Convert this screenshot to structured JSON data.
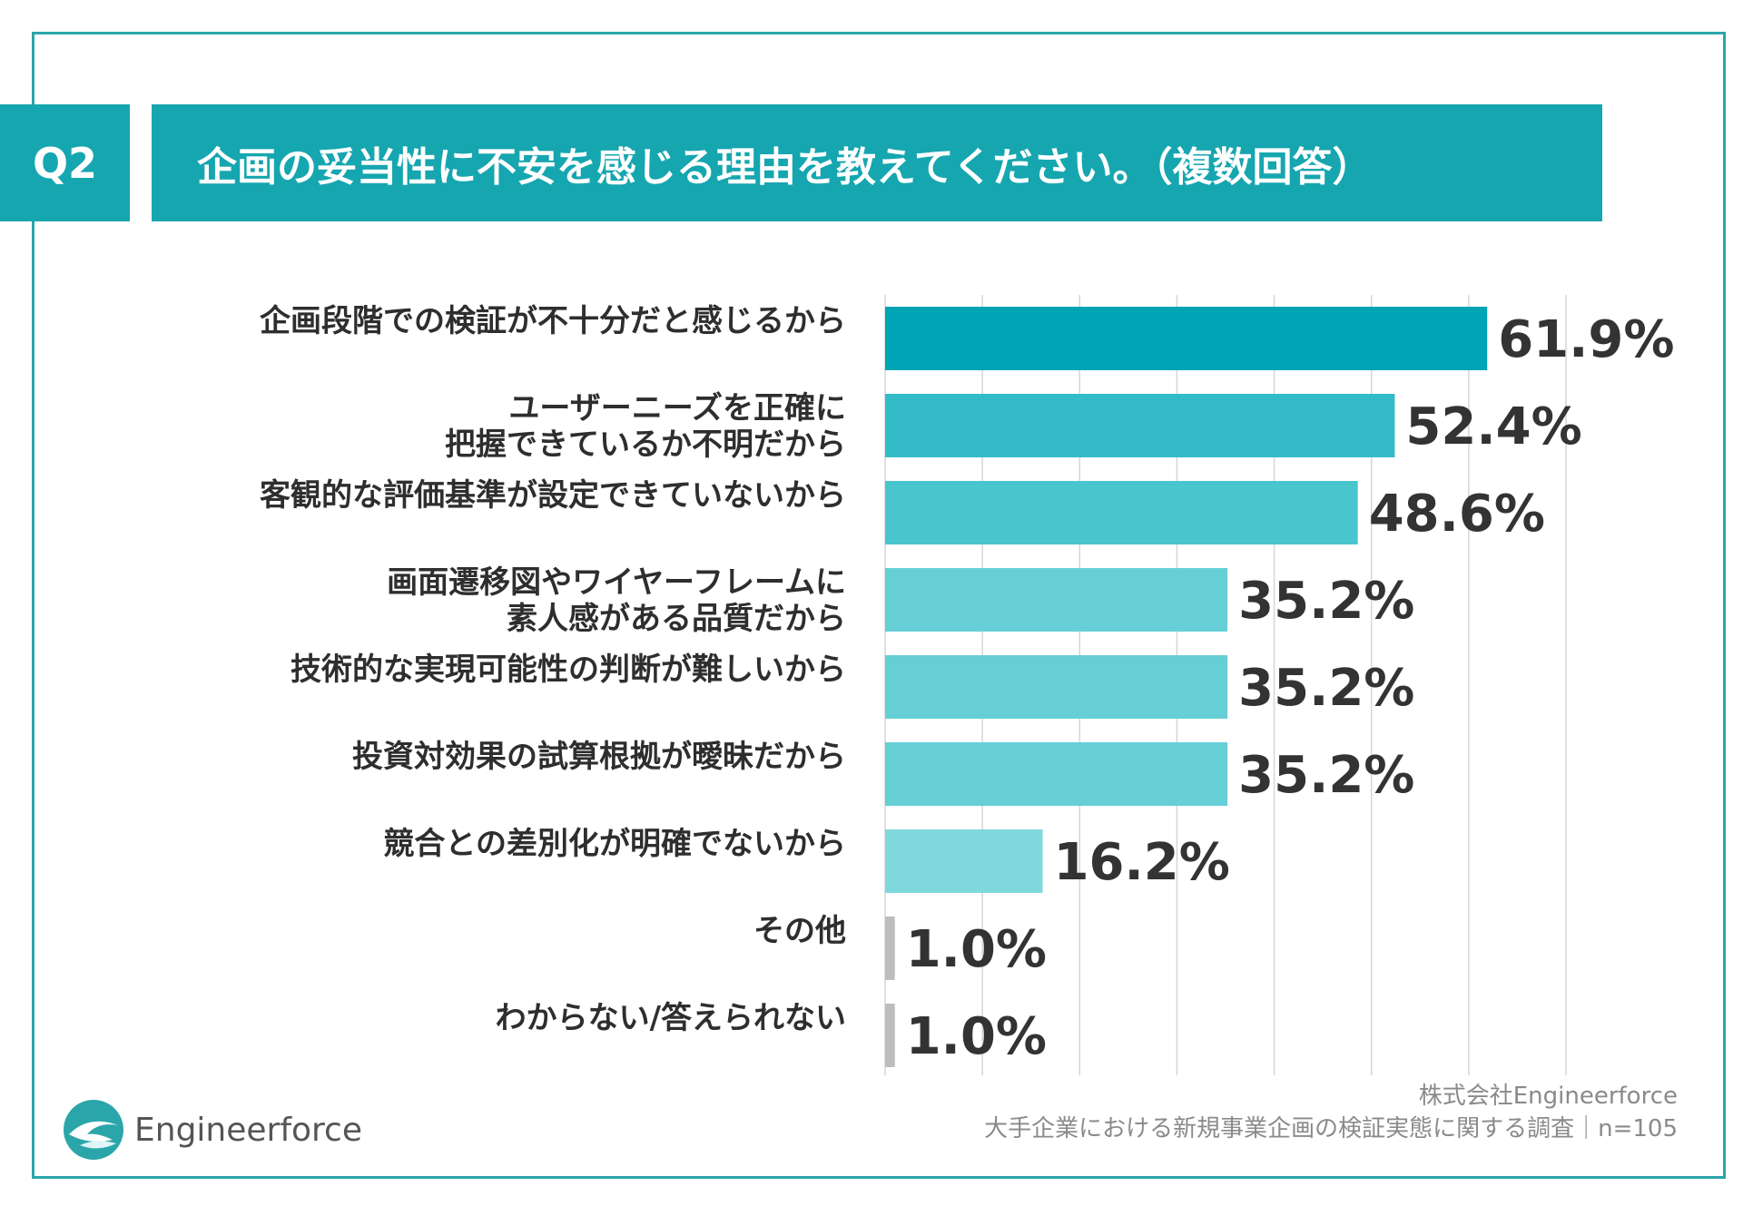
{
  "header": {
    "q_label": "Q2",
    "title": "企画の妥当性に不安を感じる理由を教えてください。（複数回答）"
  },
  "chart_data": {
    "type": "bar",
    "orientation": "horizontal",
    "categories": [
      [
        "企画段階での検証が不十分だと感じるから"
      ],
      [
        "ユーザーニーズを正確に",
        "把握できているか不明だから"
      ],
      [
        "客観的な評価基準が設定できていないから"
      ],
      [
        "画面遷移図やワイヤーフレームに",
        "素人感がある品質だから"
      ],
      [
        "技術的な実現可能性の判断が難しいから"
      ],
      [
        "投資対効果の試算根拠が曖昧だから"
      ],
      [
        "競合との差別化が明確でないから"
      ],
      [
        "その他"
      ],
      [
        "わからない/答えられない"
      ]
    ],
    "values": [
      61.9,
      52.4,
      48.6,
      35.2,
      35.2,
      35.2,
      16.2,
      1.0,
      1.0
    ],
    "value_labels": [
      "61.9%",
      "52.4%",
      "48.6%",
      "35.2%",
      "35.2%",
      "35.2%",
      "16.2%",
      "1.0%",
      "1.0%"
    ],
    "bar_colors": [
      "#00a5b5",
      "#33bcc7",
      "#49c5cd",
      "#66cfd6",
      "#66cfd6",
      "#66cfd6",
      "#80d8dc",
      "#bdbdbd",
      "#bdbdbd"
    ],
    "xlim": [
      0,
      70
    ],
    "grid": true
  },
  "footer": {
    "company": "株式会社Engineerforce",
    "survey": "大手企業における新規事業企画の検証実態に関する調査｜n=105"
  },
  "logo": {
    "text": "Engineerforce",
    "icon": "wave-bird-icon"
  },
  "colors": {
    "accent": "#16a6b0",
    "frame": "#2aa6aa"
  }
}
